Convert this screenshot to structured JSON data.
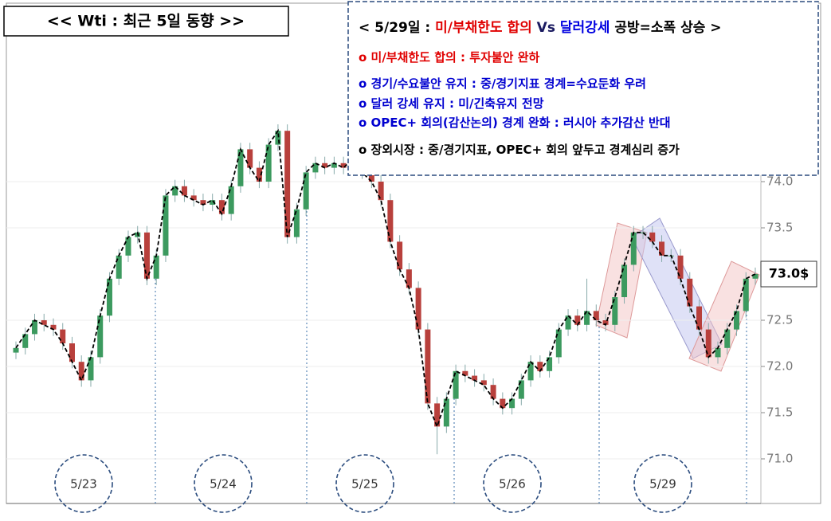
{
  "chart_data": {
    "type": "candlestick",
    "title": "<< Wti : 최근 5일 동향 >>",
    "open": [
      72.15,
      72.2,
      72.35,
      72.5,
      72.45,
      72.4,
      72.25,
      72.05,
      71.85,
      72.1,
      72.55,
      72.95,
      73.2,
      73.4,
      73.45,
      72.95,
      73.2,
      73.85,
      73.95,
      73.85,
      73.8,
      73.75,
      73.8,
      73.65,
      73.95,
      74.35,
      74.15,
      74.0,
      74.4,
      74.55,
      73.4,
      73.7,
      74.1,
      74.2,
      74.15,
      74.2,
      74.15,
      74.25,
      74.1,
      74.0,
      73.8,
      73.35,
      73.05,
      72.85,
      72.4,
      71.6,
      71.35,
      71.65,
      71.95,
      71.9,
      71.85,
      71.8,
      71.65,
      71.55,
      71.65,
      71.85,
      72.05,
      71.95,
      72.1,
      72.4,
      72.55,
      72.45,
      72.6,
      72.5,
      72.45,
      72.75,
      73.1,
      73.45,
      73.45,
      73.35,
      73.2,
      73.2,
      72.95,
      72.65,
      72.4,
      72.1,
      72.2,
      72.4,
      72.6,
      72.95
    ],
    "high": [
      72.27,
      72.42,
      72.57,
      72.57,
      72.52,
      72.47,
      72.32,
      72.12,
      72.17,
      72.62,
      73.02,
      73.27,
      73.47,
      73.52,
      73.52,
      73.27,
      73.92,
      74.02,
      74.02,
      73.92,
      73.87,
      73.87,
      73.87,
      74.02,
      74.42,
      74.42,
      74.22,
      74.47,
      74.62,
      74.62,
      73.77,
      74.17,
      74.27,
      74.27,
      74.27,
      74.27,
      74.32,
      74.32,
      74.17,
      74.07,
      73.87,
      73.42,
      73.12,
      72.92,
      72.47,
      71.67,
      71.72,
      72.02,
      72.02,
      71.97,
      71.92,
      71.87,
      71.72,
      71.72,
      71.92,
      72.12,
      72.12,
      72.17,
      72.47,
      72.62,
      72.62,
      72.95,
      72.67,
      72.57,
      72.82,
      73.17,
      73.52,
      73.52,
      73.52,
      73.42,
      73.27,
      73.27,
      73.02,
      72.72,
      72.47,
      72.27,
      72.47,
      72.67,
      73.02,
      73.07
    ],
    "low": [
      72.08,
      72.13,
      72.28,
      72.38,
      72.33,
      72.18,
      71.98,
      71.78,
      71.78,
      72.03,
      72.48,
      72.88,
      73.13,
      73.33,
      72.88,
      72.88,
      73.13,
      73.78,
      73.78,
      73.73,
      73.68,
      73.68,
      73.58,
      73.58,
      73.88,
      74.08,
      73.93,
      73.93,
      74.33,
      73.33,
      73.33,
      73.63,
      74.03,
      74.08,
      74.08,
      74.08,
      74.08,
      74.03,
      73.93,
      73.73,
      73.28,
      72.98,
      72.78,
      72.33,
      71.53,
      71.05,
      71.28,
      71.58,
      71.83,
      71.78,
      71.73,
      71.58,
      71.48,
      71.48,
      71.58,
      71.78,
      71.88,
      71.88,
      72.03,
      72.33,
      72.38,
      72.38,
      72.43,
      72.38,
      72.38,
      72.68,
      73.03,
      73.38,
      73.28,
      73.13,
      73.13,
      72.88,
      72.58,
      72.33,
      72.03,
      72.03,
      72.13,
      72.33,
      72.53,
      72.88
    ],
    "close": [
      72.2,
      72.35,
      72.5,
      72.45,
      72.4,
      72.25,
      72.05,
      71.85,
      72.1,
      72.55,
      72.95,
      73.2,
      73.4,
      73.45,
      72.95,
      73.2,
      73.85,
      73.95,
      73.85,
      73.8,
      73.75,
      73.8,
      73.65,
      73.95,
      74.35,
      74.15,
      74.0,
      74.4,
      74.55,
      73.4,
      73.7,
      74.1,
      74.2,
      74.15,
      74.2,
      74.15,
      74.25,
      74.1,
      74.0,
      73.8,
      73.35,
      73.05,
      72.85,
      72.4,
      71.6,
      71.35,
      71.65,
      71.95,
      71.9,
      71.85,
      71.8,
      71.65,
      71.55,
      71.65,
      71.85,
      72.05,
      71.95,
      72.1,
      72.4,
      72.55,
      72.45,
      72.6,
      72.5,
      72.45,
      72.75,
      73.1,
      73.45,
      73.45,
      73.35,
      73.2,
      73.2,
      72.95,
      72.65,
      72.4,
      72.1,
      72.2,
      72.4,
      72.6,
      72.95,
      73.0
    ],
    "up_color": "#3c9a5f",
    "down_color": "#b8403c",
    "ylim": [
      70.5,
      75.9
    ],
    "yticks": [
      {
        "value": 71,
        "label": "71.0"
      },
      {
        "value": 71.5,
        "label": "71.5"
      },
      {
        "value": 72,
        "label": "72.0"
      },
      {
        "value": 72.5,
        "label": "72.5"
      },
      {
        "value": 73.5,
        "label": "73.5"
      },
      {
        "value": 74,
        "label": "74.0"
      }
    ],
    "last_price": {
      "value": 73,
      "label": "73.0$"
    },
    "day_labels": [
      "5/23",
      "5/24",
      "5/25",
      "5/26",
      "5/29"
    ],
    "info": [
      [
        {
          "text": "< 5/29일 : ",
          "color": "#000000"
        },
        {
          "text": "미/부채한도 합의",
          "color": "#e00000"
        },
        {
          "text": " Vs ",
          "color": "#1a1a60"
        },
        {
          "text": "달러강세",
          "color": "#0000e0"
        },
        {
          "text": " 공방=소폭 상승 >",
          "color": "#000000"
        }
      ],
      [
        {
          "text": "o 미/부채한도 합의 : 투자불안 완하",
          "color": "#e00000"
        }
      ],
      [
        {
          "text": "o 경기/수요불안 유지 : 중/경기지표 경계=수요둔화 우려",
          "color": "#0000d0"
        }
      ],
      [
        {
          "text": "o 달러 강세 유지 : 미/긴축유지 전망",
          "color": "#0000d0"
        }
      ],
      [
        {
          "text": "o OPEC+ 회의(감산논의) 경계 완화 : 러시아 추가감산 반대",
          "color": "#0000d0"
        }
      ],
      [
        {
          "text": "o 장외시장 : 중/경기지표, OPEC+ 회의 앞두고 경계심리 증가",
          "color": "#000000"
        }
      ]
    ]
  }
}
